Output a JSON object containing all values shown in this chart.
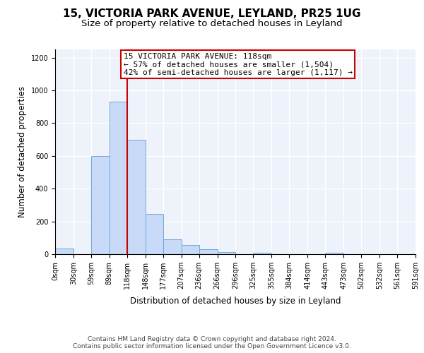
{
  "title1": "15, VICTORIA PARK AVENUE, LEYLAND, PR25 1UG",
  "title2": "Size of property relative to detached houses in Leyland",
  "xlabel": "Distribution of detached houses by size in Leyland",
  "ylabel": "Number of detached properties",
  "bin_edges": [
    0,
    30,
    59,
    89,
    118,
    148,
    177,
    207,
    236,
    266,
    296,
    325,
    355,
    384,
    414,
    443,
    473,
    502,
    532,
    561,
    591
  ],
  "bar_heights": [
    35,
    0,
    600,
    930,
    700,
    245,
    90,
    55,
    30,
    15,
    0,
    10,
    0,
    0,
    0,
    10,
    0,
    0,
    0,
    0
  ],
  "bar_color": "#c9daf8",
  "bar_edge_color": "#6fa8dc",
  "vline_x": 118,
  "vline_color": "#cc0000",
  "annotation_line1": "15 VICTORIA PARK AVENUE: 118sqm",
  "annotation_line2": "← 57% of detached houses are smaller (1,504)",
  "annotation_line3": "42% of semi-detached houses are larger (1,117) →",
  "annotation_box_color": "#cc0000",
  "annotation_box_facecolor": "white",
  "ylim": [
    0,
    1250
  ],
  "yticks": [
    0,
    200,
    400,
    600,
    800,
    1000,
    1200
  ],
  "tick_labels": [
    "0sqm",
    "30sqm",
    "59sqm",
    "89sqm",
    "118sqm",
    "148sqm",
    "177sqm",
    "207sqm",
    "236sqm",
    "266sqm",
    "296sqm",
    "325sqm",
    "355sqm",
    "384sqm",
    "414sqm",
    "443sqm",
    "473sqm",
    "502sqm",
    "532sqm",
    "561sqm",
    "591sqm"
  ],
  "footer1": "Contains HM Land Registry data © Crown copyright and database right 2024.",
  "footer2": "Contains public sector information licensed under the Open Government Licence v3.0.",
  "background_color": "#eef2fa",
  "grid_color": "#ffffff",
  "title1_fontsize": 11,
  "title2_fontsize": 9.5,
  "axis_label_fontsize": 8.5,
  "tick_fontsize": 7,
  "annotation_fontsize": 8,
  "footer_fontsize": 6.5
}
